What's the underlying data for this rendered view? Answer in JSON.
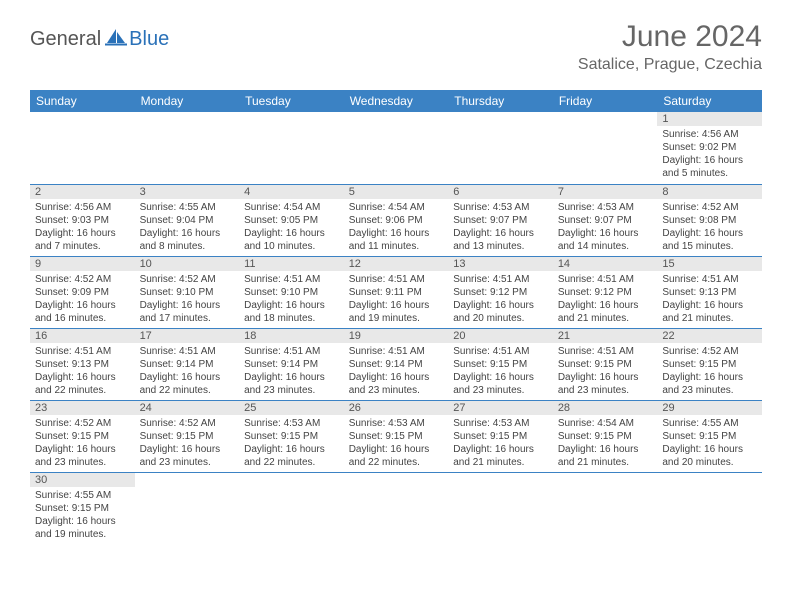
{
  "brand": {
    "text1": "General",
    "text2": "Blue"
  },
  "title": "June 2024",
  "location": "Satalice, Prague, Czechia",
  "colors": {
    "header_bg": "#3b82c4",
    "header_fg": "#ffffff",
    "daynum_bg": "#e8e8e8",
    "border": "#3b82c4"
  },
  "weekdays": [
    "Sunday",
    "Monday",
    "Tuesday",
    "Wednesday",
    "Thursday",
    "Friday",
    "Saturday"
  ],
  "weeks": [
    [
      null,
      null,
      null,
      null,
      null,
      null,
      {
        "n": "1",
        "sr": "Sunrise: 4:56 AM",
        "ss": "Sunset: 9:02 PM",
        "d1": "Daylight: 16 hours",
        "d2": "and 5 minutes."
      }
    ],
    [
      {
        "n": "2",
        "sr": "Sunrise: 4:56 AM",
        "ss": "Sunset: 9:03 PM",
        "d1": "Daylight: 16 hours",
        "d2": "and 7 minutes."
      },
      {
        "n": "3",
        "sr": "Sunrise: 4:55 AM",
        "ss": "Sunset: 9:04 PM",
        "d1": "Daylight: 16 hours",
        "d2": "and 8 minutes."
      },
      {
        "n": "4",
        "sr": "Sunrise: 4:54 AM",
        "ss": "Sunset: 9:05 PM",
        "d1": "Daylight: 16 hours",
        "d2": "and 10 minutes."
      },
      {
        "n": "5",
        "sr": "Sunrise: 4:54 AM",
        "ss": "Sunset: 9:06 PM",
        "d1": "Daylight: 16 hours",
        "d2": "and 11 minutes."
      },
      {
        "n": "6",
        "sr": "Sunrise: 4:53 AM",
        "ss": "Sunset: 9:07 PM",
        "d1": "Daylight: 16 hours",
        "d2": "and 13 minutes."
      },
      {
        "n": "7",
        "sr": "Sunrise: 4:53 AM",
        "ss": "Sunset: 9:07 PM",
        "d1": "Daylight: 16 hours",
        "d2": "and 14 minutes."
      },
      {
        "n": "8",
        "sr": "Sunrise: 4:52 AM",
        "ss": "Sunset: 9:08 PM",
        "d1": "Daylight: 16 hours",
        "d2": "and 15 minutes."
      }
    ],
    [
      {
        "n": "9",
        "sr": "Sunrise: 4:52 AM",
        "ss": "Sunset: 9:09 PM",
        "d1": "Daylight: 16 hours",
        "d2": "and 16 minutes."
      },
      {
        "n": "10",
        "sr": "Sunrise: 4:52 AM",
        "ss": "Sunset: 9:10 PM",
        "d1": "Daylight: 16 hours",
        "d2": "and 17 minutes."
      },
      {
        "n": "11",
        "sr": "Sunrise: 4:51 AM",
        "ss": "Sunset: 9:10 PM",
        "d1": "Daylight: 16 hours",
        "d2": "and 18 minutes."
      },
      {
        "n": "12",
        "sr": "Sunrise: 4:51 AM",
        "ss": "Sunset: 9:11 PM",
        "d1": "Daylight: 16 hours",
        "d2": "and 19 minutes."
      },
      {
        "n": "13",
        "sr": "Sunrise: 4:51 AM",
        "ss": "Sunset: 9:12 PM",
        "d1": "Daylight: 16 hours",
        "d2": "and 20 minutes."
      },
      {
        "n": "14",
        "sr": "Sunrise: 4:51 AM",
        "ss": "Sunset: 9:12 PM",
        "d1": "Daylight: 16 hours",
        "d2": "and 21 minutes."
      },
      {
        "n": "15",
        "sr": "Sunrise: 4:51 AM",
        "ss": "Sunset: 9:13 PM",
        "d1": "Daylight: 16 hours",
        "d2": "and 21 minutes."
      }
    ],
    [
      {
        "n": "16",
        "sr": "Sunrise: 4:51 AM",
        "ss": "Sunset: 9:13 PM",
        "d1": "Daylight: 16 hours",
        "d2": "and 22 minutes."
      },
      {
        "n": "17",
        "sr": "Sunrise: 4:51 AM",
        "ss": "Sunset: 9:14 PM",
        "d1": "Daylight: 16 hours",
        "d2": "and 22 minutes."
      },
      {
        "n": "18",
        "sr": "Sunrise: 4:51 AM",
        "ss": "Sunset: 9:14 PM",
        "d1": "Daylight: 16 hours",
        "d2": "and 23 minutes."
      },
      {
        "n": "19",
        "sr": "Sunrise: 4:51 AM",
        "ss": "Sunset: 9:14 PM",
        "d1": "Daylight: 16 hours",
        "d2": "and 23 minutes."
      },
      {
        "n": "20",
        "sr": "Sunrise: 4:51 AM",
        "ss": "Sunset: 9:15 PM",
        "d1": "Daylight: 16 hours",
        "d2": "and 23 minutes."
      },
      {
        "n": "21",
        "sr": "Sunrise: 4:51 AM",
        "ss": "Sunset: 9:15 PM",
        "d1": "Daylight: 16 hours",
        "d2": "and 23 minutes."
      },
      {
        "n": "22",
        "sr": "Sunrise: 4:52 AM",
        "ss": "Sunset: 9:15 PM",
        "d1": "Daylight: 16 hours",
        "d2": "and 23 minutes."
      }
    ],
    [
      {
        "n": "23",
        "sr": "Sunrise: 4:52 AM",
        "ss": "Sunset: 9:15 PM",
        "d1": "Daylight: 16 hours",
        "d2": "and 23 minutes."
      },
      {
        "n": "24",
        "sr": "Sunrise: 4:52 AM",
        "ss": "Sunset: 9:15 PM",
        "d1": "Daylight: 16 hours",
        "d2": "and 23 minutes."
      },
      {
        "n": "25",
        "sr": "Sunrise: 4:53 AM",
        "ss": "Sunset: 9:15 PM",
        "d1": "Daylight: 16 hours",
        "d2": "and 22 minutes."
      },
      {
        "n": "26",
        "sr": "Sunrise: 4:53 AM",
        "ss": "Sunset: 9:15 PM",
        "d1": "Daylight: 16 hours",
        "d2": "and 22 minutes."
      },
      {
        "n": "27",
        "sr": "Sunrise: 4:53 AM",
        "ss": "Sunset: 9:15 PM",
        "d1": "Daylight: 16 hours",
        "d2": "and 21 minutes."
      },
      {
        "n": "28",
        "sr": "Sunrise: 4:54 AM",
        "ss": "Sunset: 9:15 PM",
        "d1": "Daylight: 16 hours",
        "d2": "and 21 minutes."
      },
      {
        "n": "29",
        "sr": "Sunrise: 4:55 AM",
        "ss": "Sunset: 9:15 PM",
        "d1": "Daylight: 16 hours",
        "d2": "and 20 minutes."
      }
    ],
    [
      {
        "n": "30",
        "sr": "Sunrise: 4:55 AM",
        "ss": "Sunset: 9:15 PM",
        "d1": "Daylight: 16 hours",
        "d2": "and 19 minutes."
      },
      null,
      null,
      null,
      null,
      null,
      null
    ]
  ]
}
